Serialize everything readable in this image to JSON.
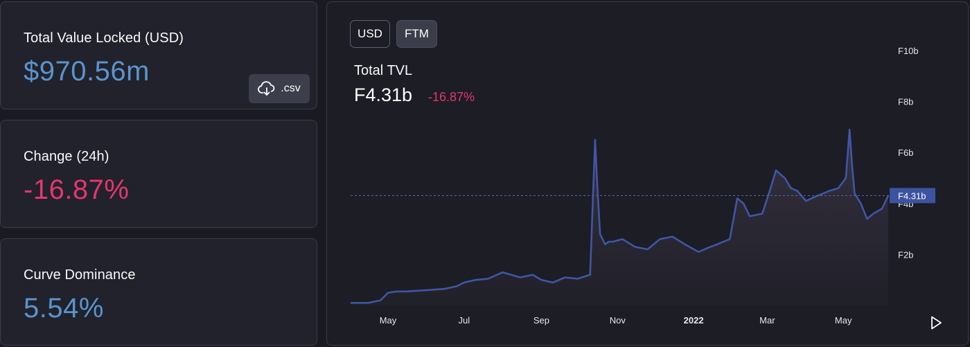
{
  "stats": {
    "tvl": {
      "label": "Total Value Locked (USD)",
      "value": "$970.56m",
      "color": "#5a94cf"
    },
    "change": {
      "label": "Change (24h)",
      "value": "-16.87%",
      "color": "#e5366e"
    },
    "dominance": {
      "label": "Curve Dominance",
      "value": "5.54%",
      "color": "#5a94cf"
    },
    "csv_button": {
      "icon": "cloud-download-icon",
      "label": ".csv"
    }
  },
  "chart_panel": {
    "toggles": [
      {
        "label": "USD",
        "selected": false
      },
      {
        "label": "FTM",
        "selected": true
      }
    ],
    "title": "Total TVL",
    "current_value": "F4.31b",
    "change": "-16.87%",
    "change_color": "#e5366e",
    "play_icon": "play-icon"
  },
  "chart_data": {
    "type": "area",
    "title": "Total TVL",
    "xlabel": "",
    "ylabel": "",
    "x_ticks": [
      "May",
      "Jul",
      "Sep",
      "Nov",
      "2022",
      "Mar",
      "May"
    ],
    "y_ticks": [
      "F2b",
      "F4b",
      "F6b",
      "F8b",
      "F10b"
    ],
    "ylim": [
      0,
      10
    ],
    "y_unit": "billion FTM",
    "current_marker": {
      "label": "F4.31b",
      "value": 4.31
    },
    "line_color": "#4056a6",
    "grid": false,
    "series": [
      {
        "x": [
          "2021-04-01",
          "2021-04-15",
          "2021-04-25",
          "2021-05-01",
          "2021-05-08",
          "2021-05-15",
          "2021-06-01",
          "2021-06-15",
          "2021-06-25",
          "2021-07-01",
          "2021-07-10",
          "2021-07-20",
          "2021-08-01",
          "2021-08-15",
          "2021-08-25",
          "2021-09-01",
          "2021-09-10",
          "2021-09-20",
          "2021-09-30",
          "2021-10-10",
          "2021-10-14",
          "2021-10-16",
          "2021-10-18",
          "2021-10-20",
          "2021-10-22",
          "2021-10-25",
          "2021-10-28",
          "2021-11-05",
          "2021-11-15",
          "2021-11-25",
          "2021-12-05",
          "2021-12-15",
          "2021-12-25",
          "2022-01-05",
          "2022-01-12",
          "2022-01-20",
          "2022-01-30",
          "2022-02-05",
          "2022-02-10",
          "2022-02-15",
          "2022-02-25",
          "2022-03-03",
          "2022-03-08",
          "2022-03-15",
          "2022-03-20",
          "2022-03-25",
          "2022-04-01",
          "2022-04-10",
          "2022-04-20",
          "2022-04-27",
          "2022-05-03",
          "2022-05-06",
          "2022-05-08",
          "2022-05-10",
          "2022-05-15",
          "2022-05-20",
          "2022-05-25",
          "2022-06-01",
          "2022-06-06"
        ],
        "values": [
          0.1,
          0.1,
          0.2,
          0.5,
          0.55,
          0.55,
          0.6,
          0.65,
          0.75,
          0.9,
          1.0,
          1.05,
          1.3,
          1.1,
          1.2,
          1.0,
          0.9,
          1.1,
          1.05,
          1.2,
          6.5,
          4.5,
          2.8,
          2.6,
          2.4,
          2.5,
          2.5,
          2.6,
          2.3,
          2.2,
          2.6,
          2.7,
          2.4,
          2.1,
          2.25,
          2.4,
          2.6,
          4.2,
          4.0,
          3.5,
          3.6,
          4.5,
          5.3,
          5.0,
          4.6,
          4.5,
          4.1,
          4.3,
          4.5,
          4.6,
          5.0,
          6.9,
          5.5,
          4.4,
          4.0,
          3.4,
          3.6,
          3.8,
          4.31
        ]
      }
    ]
  }
}
